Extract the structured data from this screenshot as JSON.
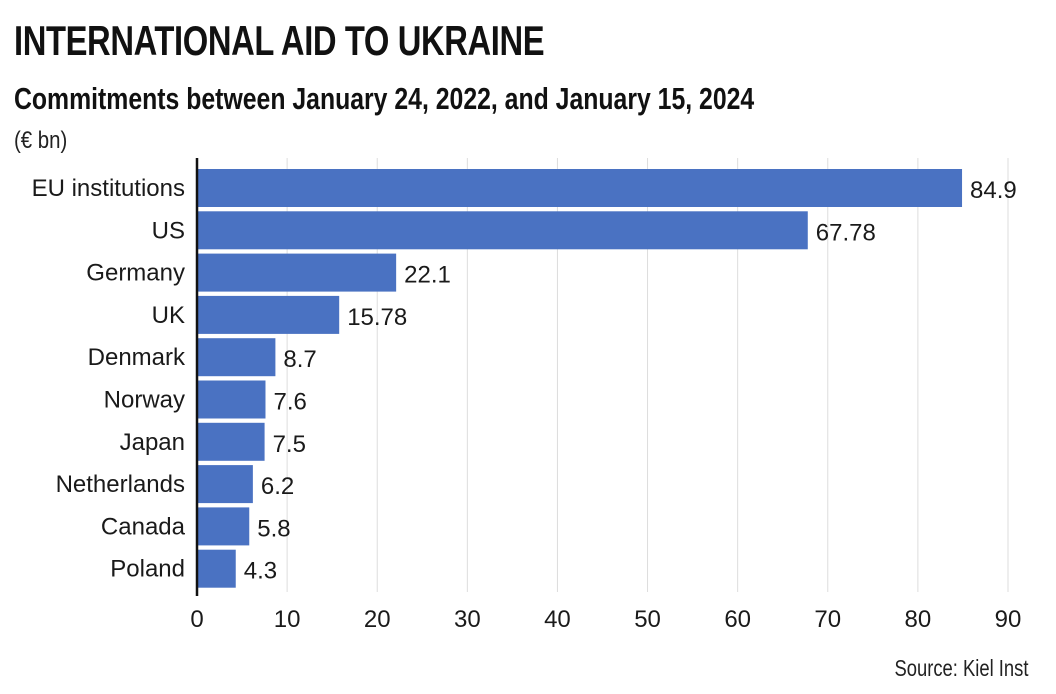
{
  "header": {
    "title": "INTERNATIONAL AID TO UKRAINE",
    "subtitle": "Commitments between January 24, 2022, and January 15, 2024",
    "unit": "(€ bn)"
  },
  "footer": {
    "source": "Source: Kiel Inst"
  },
  "colors": {
    "bar": "#4a72c2",
    "grid": "#dddddd",
    "axis": "#111111"
  },
  "chart_data": {
    "type": "bar",
    "orientation": "horizontal",
    "categories": [
      "EU institutions",
      "US",
      "Germany",
      "UK",
      "Denmark",
      "Norway",
      "Japan",
      "Netherlands",
      "Canada",
      "Poland"
    ],
    "values": [
      84.9,
      67.78,
      22.1,
      15.78,
      8.7,
      7.6,
      7.5,
      6.2,
      5.8,
      4.3
    ],
    "value_labels": [
      "84.9",
      "67.78",
      "22.1",
      "15.78",
      "8.7",
      "7.6",
      "7.5",
      "6.2",
      "5.8",
      "4.3"
    ],
    "title": "INTERNATIONAL AID TO UKRAINE",
    "subtitle": "Commitments between January 24, 2022, and January 15, 2024",
    "xlabel": "",
    "ylabel": "(€ bn)",
    "xlim": [
      0,
      90
    ],
    "xticks": [
      0,
      10,
      20,
      30,
      40,
      50,
      60,
      70,
      80,
      90
    ],
    "xtick_labels": [
      "0",
      "10",
      "20",
      "30",
      "40",
      "50",
      "60",
      "70",
      "80",
      "90"
    ],
    "grid": true,
    "legend": "none"
  }
}
